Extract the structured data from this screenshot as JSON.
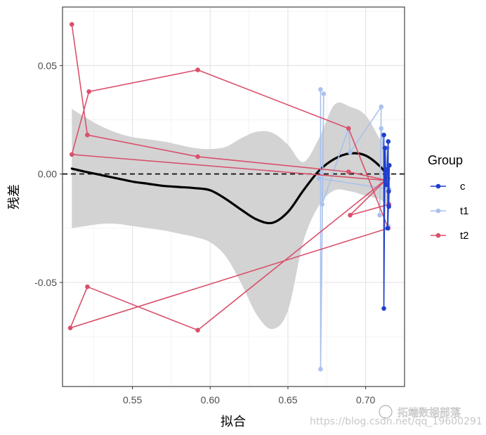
{
  "chart_data": {
    "type": "line",
    "xlabel": "拟合",
    "ylabel": "残差",
    "xlim": [
      0.505,
      0.725
    ],
    "ylim": [
      -0.098,
      0.077
    ],
    "x_ticks": [
      0.55,
      0.6,
      0.65,
      0.7
    ],
    "x_tick_labels": [
      "0.55",
      "0.60",
      "0.65",
      "0.70"
    ],
    "y_ticks": [
      -0.05,
      0.0,
      0.05
    ],
    "y_tick_labels": [
      "-0.05",
      "0.00",
      "0.05"
    ],
    "grid": true,
    "reference_line": {
      "y": 0,
      "style": "dashed",
      "color": "#000000"
    },
    "legend": {
      "title": "Group",
      "placement": "right"
    },
    "series": [
      {
        "name": "c",
        "color": "#1f3fcc",
        "points": [
          [
            0.7117,
            0.018
          ],
          [
            0.7117,
            -0.062
          ],
          [
            0.7124,
            0.012
          ],
          [
            0.7131,
            -0.005
          ],
          [
            0.7138,
            0.002
          ],
          [
            0.7145,
            0.015
          ],
          [
            0.7141,
            -0.025
          ],
          [
            0.7148,
            -0.008
          ],
          [
            0.7152,
            0.004
          ],
          [
            0.7149,
            -0.015
          ]
        ]
      },
      {
        "name": "t1",
        "color": "#a9c1ee",
        "points": [
          [
            0.671,
            0.039
          ],
          [
            0.671,
            -0.09
          ],
          [
            0.673,
            0.037
          ],
          [
            0.672,
            -0.014
          ],
          [
            0.689,
            0.021
          ],
          [
            0.69,
            0.01
          ],
          [
            0.71,
            0.031
          ],
          [
            0.709,
            -0.019
          ],
          [
            0.71,
            0.021
          ],
          [
            0.713,
            -0.001
          ],
          [
            0.714,
            0.012
          ],
          [
            0.7145,
            -0.024
          ],
          [
            0.715,
            -0.007
          ],
          [
            0.67,
            -0.002
          ]
        ]
      },
      {
        "name": "t2",
        "color": "#d9506b",
        "points": [
          [
            0.511,
            0.069
          ],
          [
            0.521,
            0.018
          ],
          [
            0.592,
            0.008
          ],
          [
            0.689,
            0.001
          ],
          [
            0.714,
            -0.003
          ],
          [
            0.511,
            0.009
          ],
          [
            0.522,
            0.038
          ],
          [
            0.592,
            0.048
          ],
          [
            0.689,
            0.021
          ],
          [
            0.7145,
            -0.025
          ],
          [
            0.51,
            -0.071
          ],
          [
            0.521,
            -0.052
          ],
          [
            0.592,
            -0.072
          ],
          [
            0.714,
            -0.002
          ],
          [
            0.69,
            -0.019
          ],
          [
            0.715,
            -0.014
          ]
        ]
      }
    ],
    "smooth": {
      "color": "#000000",
      "band_color": "#d3d3d3",
      "x": [
        0.511,
        0.52,
        0.53,
        0.54,
        0.55,
        0.56,
        0.57,
        0.58,
        0.59,
        0.6,
        0.61,
        0.62,
        0.63,
        0.64,
        0.65,
        0.66,
        0.67,
        0.68,
        0.69,
        0.7,
        0.71,
        0.715
      ],
      "y": [
        0.0025,
        0.001,
        -0.0005,
        -0.002,
        -0.0035,
        -0.0045,
        -0.0055,
        -0.006,
        -0.0065,
        -0.0075,
        -0.0115,
        -0.0165,
        -0.021,
        -0.0225,
        -0.0175,
        -0.0075,
        0.0015,
        0.007,
        0.0095,
        0.0085,
        0.003,
        -0.002
      ],
      "upper": [
        0.03,
        0.026,
        0.022,
        0.019,
        0.017,
        0.016,
        0.015,
        0.0135,
        0.012,
        0.0115,
        0.0125,
        0.0165,
        0.0195,
        0.019,
        0.0135,
        0.0055,
        0.0165,
        0.032,
        0.031,
        0.027,
        0.015,
        0.011
      ],
      "lower": [
        -0.025,
        -0.024,
        -0.023,
        -0.023,
        -0.024,
        -0.025,
        -0.026,
        -0.0275,
        -0.029,
        -0.0315,
        -0.038,
        -0.0505,
        -0.065,
        -0.0715,
        -0.063,
        -0.031,
        -0.0145,
        -0.0075,
        -0.008,
        -0.01,
        -0.012,
        -0.016
      ]
    },
    "watermark": {
      "url_text": "https://blog.csdn.net/qq_19600291",
      "brand_text": "拓端数据部落"
    }
  }
}
